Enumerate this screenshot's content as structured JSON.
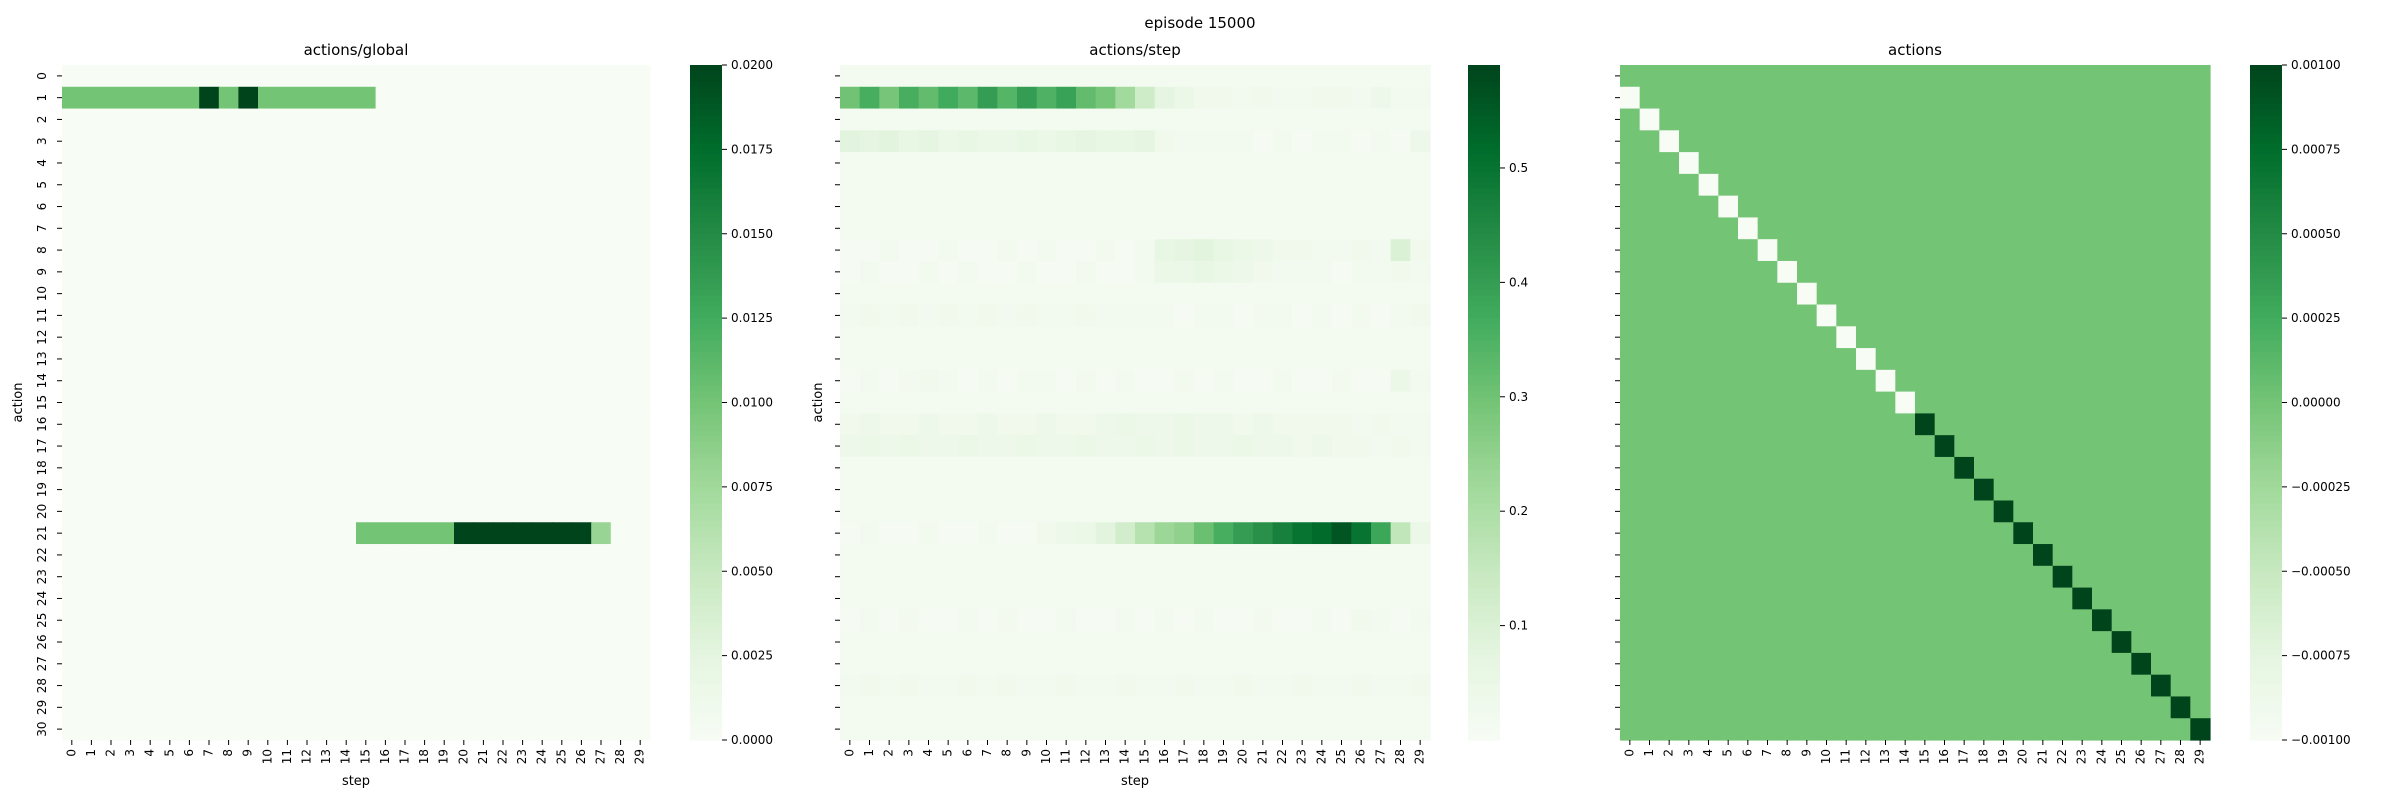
{
  "figure": {
    "suptitle": "episode 15000"
  },
  "chart_data": [
    {
      "type": "heatmap",
      "title": "actions/global",
      "xlabel": "step",
      "ylabel": "action",
      "x_ticks": [
        "0",
        "1",
        "2",
        "3",
        "4",
        "5",
        "6",
        "7",
        "8",
        "9",
        "10",
        "11",
        "12",
        "13",
        "14",
        "15",
        "16",
        "17",
        "18",
        "19",
        "20",
        "21",
        "22",
        "23",
        "24",
        "25",
        "26",
        "27",
        "28",
        "29"
      ],
      "y_ticks": [
        "0",
        "1",
        "2",
        "3",
        "4",
        "5",
        "6",
        "7",
        "8",
        "9",
        "10",
        "11",
        "12",
        "13",
        "14",
        "15",
        "16",
        "17",
        "18",
        "19",
        "20",
        "21",
        "22",
        "23",
        "24",
        "25",
        "26",
        "27",
        "28",
        "29",
        "30"
      ],
      "n_rows": 31,
      "n_cols": 30,
      "color_range": [
        0.0,
        0.02
      ],
      "colorbar_ticks": [
        "0.0000",
        "0.0025",
        "0.0050",
        "0.0075",
        "0.0100",
        "0.0125",
        "0.0150",
        "0.0175",
        "0.0200"
      ],
      "colorbar_tick_values": [
        0.0,
        0.0025,
        0.005,
        0.0075,
        0.01,
        0.0125,
        0.015,
        0.0175,
        0.02
      ],
      "cells": [
        {
          "row": 1,
          "cols": [
            0,
            1,
            2,
            3,
            4,
            5,
            6
          ],
          "value": 0.01
        },
        {
          "row": 1,
          "cols": [
            7
          ],
          "value": 0.02
        },
        {
          "row": 1,
          "cols": [
            8
          ],
          "value": 0.01
        },
        {
          "row": 1,
          "cols": [
            9
          ],
          "value": 0.02
        },
        {
          "row": 1,
          "cols": [
            10,
            11,
            12,
            13,
            14,
            15
          ],
          "value": 0.01
        },
        {
          "row": 21,
          "cols": [
            15,
            16,
            17,
            18,
            19
          ],
          "value": 0.01
        },
        {
          "row": 21,
          "cols": [
            20,
            21,
            22,
            23,
            24,
            25,
            26
          ],
          "value": 0.02
        },
        {
          "row": 21,
          "cols": [
            27
          ],
          "value": 0.008
        }
      ],
      "default_value": 0.0,
      "grid": false,
      "colormap": "Greens"
    },
    {
      "type": "heatmap",
      "title": "actions/step",
      "xlabel": "step",
      "ylabel": "action",
      "x_ticks": [
        "0",
        "1",
        "2",
        "3",
        "4",
        "5",
        "6",
        "7",
        "8",
        "9",
        "10",
        "11",
        "12",
        "13",
        "14",
        "15",
        "16",
        "17",
        "18",
        "19",
        "20",
        "21",
        "22",
        "23",
        "24",
        "25",
        "26",
        "27",
        "28",
        "29"
      ],
      "y_ticks": [],
      "n_rows": 31,
      "n_cols": 30,
      "color_range": [
        0.0,
        0.59
      ],
      "colorbar_ticks": [
        "0.1",
        "0.2",
        "0.3",
        "0.4",
        "0.5"
      ],
      "colorbar_tick_values": [
        0.1,
        0.2,
        0.3,
        0.4,
        0.5
      ],
      "rows": [
        {
          "row": 1,
          "values": [
            0.3,
            0.36,
            0.29,
            0.36,
            0.32,
            0.37,
            0.33,
            0.4,
            0.34,
            0.4,
            0.35,
            0.39,
            0.32,
            0.29,
            0.22,
            0.13,
            0.07,
            0.05,
            0.03,
            0.03,
            0.02,
            0.03,
            0.02,
            0.02,
            0.03,
            0.03,
            0.02,
            0.04,
            0.02,
            0.02
          ]
        },
        {
          "row": 3,
          "values": [
            0.08,
            0.07,
            0.08,
            0.06,
            0.07,
            0.05,
            0.06,
            0.05,
            0.05,
            0.06,
            0.05,
            0.06,
            0.07,
            0.06,
            0.06,
            0.07,
            0.03,
            0.02,
            0.02,
            0.02,
            0.02,
            0.01,
            0.02,
            0.01,
            0.02,
            0.02,
            0.01,
            0.02,
            0.01,
            0.04
          ]
        },
        {
          "row": 8,
          "values": [
            0.01,
            0.01,
            0.02,
            0.01,
            0.01,
            0.02,
            0.01,
            0.01,
            0.02,
            0.01,
            0.02,
            0.01,
            0.01,
            0.02,
            0.01,
            0.02,
            0.06,
            0.07,
            0.08,
            0.06,
            0.05,
            0.04,
            0.03,
            0.03,
            0.02,
            0.02,
            0.03,
            0.02,
            0.1,
            0.03
          ]
        },
        {
          "row": 9,
          "values": [
            0.01,
            0.02,
            0.01,
            0.01,
            0.02,
            0.01,
            0.02,
            0.01,
            0.01,
            0.02,
            0.01,
            0.01,
            0.02,
            0.01,
            0.01,
            0.02,
            0.05,
            0.05,
            0.06,
            0.05,
            0.04,
            0.03,
            0.02,
            0.02,
            0.02,
            0.01,
            0.02,
            0.02,
            0.03,
            0.02
          ]
        },
        {
          "row": 11,
          "values": [
            0.02,
            0.03,
            0.02,
            0.03,
            0.02,
            0.03,
            0.02,
            0.03,
            0.02,
            0.03,
            0.02,
            0.02,
            0.03,
            0.02,
            0.02,
            0.02,
            0.02,
            0.01,
            0.02,
            0.02,
            0.01,
            0.02,
            0.02,
            0.01,
            0.02,
            0.01,
            0.02,
            0.01,
            0.02,
            0.03
          ]
        },
        {
          "row": 14,
          "values": [
            0.01,
            0.02,
            0.01,
            0.02,
            0.03,
            0.02,
            0.01,
            0.02,
            0.01,
            0.02,
            0.02,
            0.01,
            0.02,
            0.01,
            0.02,
            0.01,
            0.01,
            0.02,
            0.01,
            0.02,
            0.01,
            0.01,
            0.02,
            0.01,
            0.01,
            0.02,
            0.01,
            0.01,
            0.05,
            0.02
          ]
        },
        {
          "row": 16,
          "values": [
            0.03,
            0.04,
            0.03,
            0.03,
            0.04,
            0.03,
            0.03,
            0.04,
            0.03,
            0.03,
            0.04,
            0.03,
            0.03,
            0.04,
            0.05,
            0.04,
            0.04,
            0.05,
            0.04,
            0.04,
            0.03,
            0.04,
            0.03,
            0.03,
            0.03,
            0.03,
            0.02,
            0.03,
            0.02,
            0.02
          ]
        },
        {
          "row": 17,
          "values": [
            0.04,
            0.05,
            0.04,
            0.05,
            0.04,
            0.04,
            0.05,
            0.04,
            0.04,
            0.05,
            0.04,
            0.04,
            0.05,
            0.04,
            0.04,
            0.05,
            0.04,
            0.05,
            0.04,
            0.04,
            0.05,
            0.04,
            0.04,
            0.03,
            0.04,
            0.03,
            0.03,
            0.02,
            0.03,
            0.02
          ]
        },
        {
          "row": 21,
          "values": [
            0.01,
            0.02,
            0.01,
            0.01,
            0.02,
            0.01,
            0.01,
            0.02,
            0.01,
            0.01,
            0.03,
            0.04,
            0.05,
            0.08,
            0.12,
            0.18,
            0.23,
            0.25,
            0.31,
            0.36,
            0.4,
            0.43,
            0.47,
            0.5,
            0.52,
            0.56,
            0.5,
            0.38,
            0.16,
            0.05
          ]
        },
        {
          "row": 25,
          "values": [
            0.01,
            0.02,
            0.01,
            0.02,
            0.01,
            0.01,
            0.02,
            0.01,
            0.02,
            0.01,
            0.01,
            0.02,
            0.01,
            0.01,
            0.02,
            0.01,
            0.02,
            0.01,
            0.02,
            0.01,
            0.01,
            0.02,
            0.01,
            0.01,
            0.02,
            0.01,
            0.03,
            0.02,
            0.01,
            0.02
          ]
        },
        {
          "row": 28,
          "values": [
            0.02,
            0.03,
            0.02,
            0.03,
            0.02,
            0.02,
            0.03,
            0.02,
            0.03,
            0.02,
            0.02,
            0.03,
            0.02,
            0.02,
            0.03,
            0.02,
            0.02,
            0.03,
            0.02,
            0.02,
            0.03,
            0.02,
            0.02,
            0.03,
            0.02,
            0.02,
            0.03,
            0.02,
            0.02,
            0.03
          ]
        }
      ],
      "default_value": 0.015,
      "grid": false,
      "colormap": "Greens"
    },
    {
      "type": "heatmap",
      "title": "actions",
      "xlabel": "",
      "ylabel": "",
      "x_ticks": [
        "0",
        "1",
        "2",
        "3",
        "4",
        "5",
        "6",
        "7",
        "8",
        "9",
        "10",
        "11",
        "12",
        "13",
        "14",
        "15",
        "16",
        "17",
        "18",
        "19",
        "20",
        "21",
        "22",
        "23",
        "24",
        "25",
        "26",
        "27",
        "28",
        "29"
      ],
      "y_ticks": [],
      "n_rows": 31,
      "n_cols": 30,
      "color_range": [
        -0.001,
        0.001
      ],
      "colorbar_ticks": [
        "0.00100",
        "0.00075",
        "0.00050",
        "0.00025",
        "0.00000",
        "−0.00025",
        "−0.00050",
        "−0.00075",
        "−0.00100"
      ],
      "colorbar_tick_values": [
        0.001,
        0.00075,
        0.0005,
        0.00025,
        0.0,
        -0.00025,
        -0.0005,
        -0.00075,
        -0.001
      ],
      "default_value": 0.0,
      "diagonal": {
        "row_offset": 1,
        "low_value": -0.001,
        "high_value": 0.001,
        "switch_col": 15
      },
      "grid": false,
      "colormap": "Greens"
    }
  ]
}
